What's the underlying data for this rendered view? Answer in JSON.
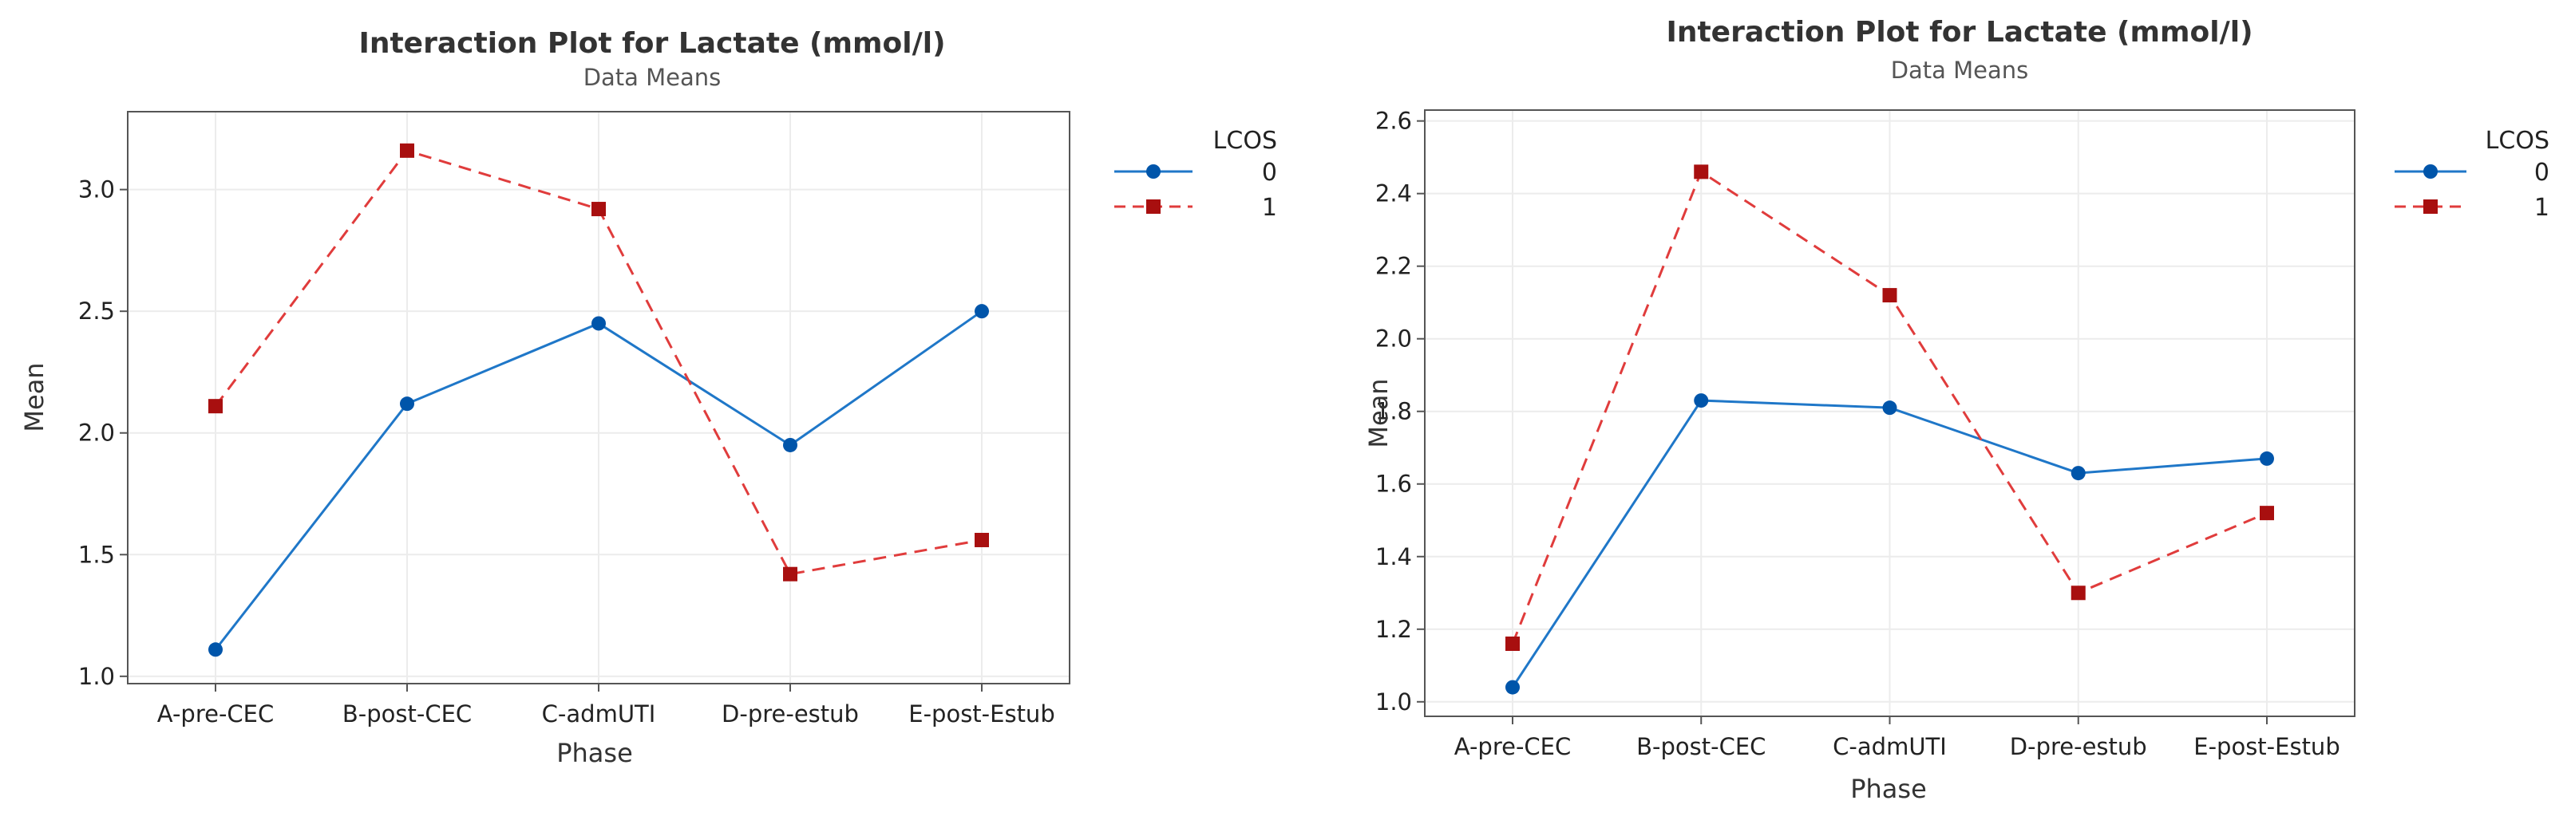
{
  "chart_data": [
    {
      "type": "line",
      "title": "Interaction Plot for Lactate (mmol/l)",
      "subtitle": "Data Means",
      "xlabel": "Phase",
      "ylabel": "Mean",
      "categories": [
        "A-pre-CEC",
        "B-post-CEC",
        "C-admUTI",
        "D-pre-estub",
        "E-post-Estub"
      ],
      "ylim": [
        0.97,
        3.32
      ],
      "yticks": [
        1.0,
        1.5,
        2.0,
        2.5,
        3.0
      ],
      "ytick_labels": [
        "1.0",
        "1.5",
        "2.0",
        "2.5",
        "3.0"
      ],
      "grid": true,
      "legend_title": "LCOS",
      "legend_position": "top-right outside",
      "series": [
        {
          "name": "0",
          "values": [
            1.11,
            2.12,
            2.45,
            1.95,
            2.5
          ],
          "color": "#1f77c8",
          "marker_color": "#0055aa",
          "dash": "solid",
          "marker": "circle"
        },
        {
          "name": "1",
          "values": [
            2.11,
            3.16,
            2.92,
            1.42,
            1.56
          ],
          "color": "#e03c3c",
          "marker_color": "#a80f0f",
          "dash": "dashed",
          "marker": "square"
        }
      ]
    },
    {
      "type": "line",
      "title": "Interaction Plot for Lactate (mmol/l)",
      "subtitle": "Data Means",
      "xlabel": "Phase",
      "ylabel": "Mean",
      "categories": [
        "A-pre-CEC",
        "B-post-CEC",
        "C-admUTI",
        "D-pre-estub",
        "E-post-Estub"
      ],
      "ylim": [
        0.96,
        2.63
      ],
      "yticks": [
        1.0,
        1.2,
        1.4,
        1.6,
        1.8,
        2.0,
        2.2,
        2.4,
        2.6
      ],
      "ytick_labels": [
        "1.0",
        "1.2",
        "1.4",
        "1.6",
        "1.8",
        "2.0",
        "2.2",
        "2.4",
        "2.6"
      ],
      "grid": true,
      "legend_title": "LCOS",
      "legend_position": "top-right outside",
      "series": [
        {
          "name": "0",
          "values": [
            1.04,
            1.83,
            1.81,
            1.63,
            1.67
          ],
          "color": "#1f77c8",
          "marker_color": "#0055aa",
          "dash": "solid",
          "marker": "circle"
        },
        {
          "name": "1",
          "values": [
            1.16,
            2.46,
            2.12,
            1.3,
            1.52
          ],
          "color": "#e03c3c",
          "marker_color": "#a80f0f",
          "dash": "dashed",
          "marker": "square"
        }
      ]
    }
  ]
}
